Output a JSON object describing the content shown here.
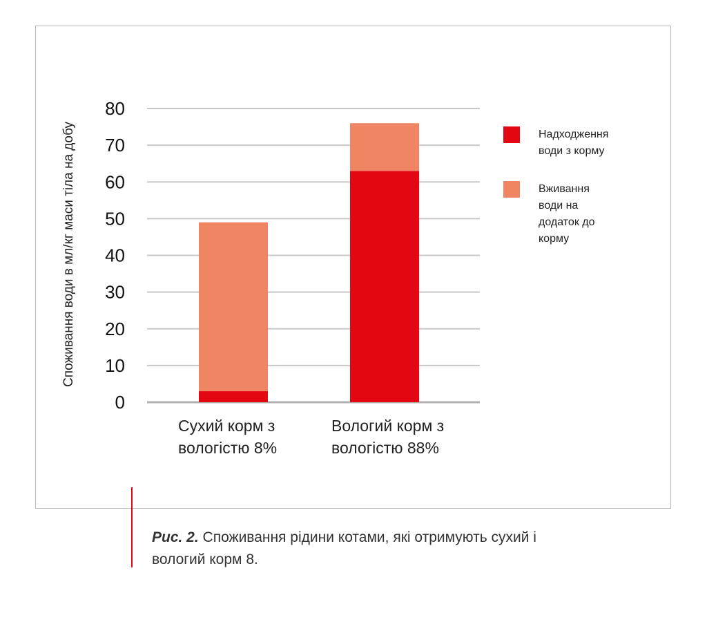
{
  "chart_data": {
    "type": "bar",
    "stacked": true,
    "categories": [
      "Сухий корм з вологістю 8%",
      "Вологий корм з вологістю 88%"
    ],
    "category_lines": [
      [
        "Сухий корм з",
        "вологістю 8%"
      ],
      [
        "Вологий корм з",
        "вологістю 88%"
      ]
    ],
    "series": [
      {
        "name": "Надходження води з корму",
        "values": [
          3,
          63
        ],
        "color": "#e30613"
      },
      {
        "name": "Вживання води на додаток до корму",
        "values": [
          46,
          13
        ],
        "color": "#f08563"
      }
    ],
    "totals": [
      49,
      76
    ],
    "ylabel": "Споживання води в мл/кг маси тіла на добу",
    "xlabel": "",
    "ylim": [
      0,
      80
    ],
    "yticks": [
      "0",
      "10",
      "20",
      "30",
      "40",
      "50",
      "60",
      "70",
      "80"
    ],
    "grid": true,
    "legend_position": "right",
    "legend_lines": [
      [
        "Надходження",
        "води з корму"
      ],
      [
        "Вживання",
        "води на",
        "додаток до",
        "корму"
      ]
    ]
  },
  "caption": {
    "label": "Рис. 2.",
    "text": " Споживання рідини котами, які отримують сухий і вологий корм 8."
  }
}
